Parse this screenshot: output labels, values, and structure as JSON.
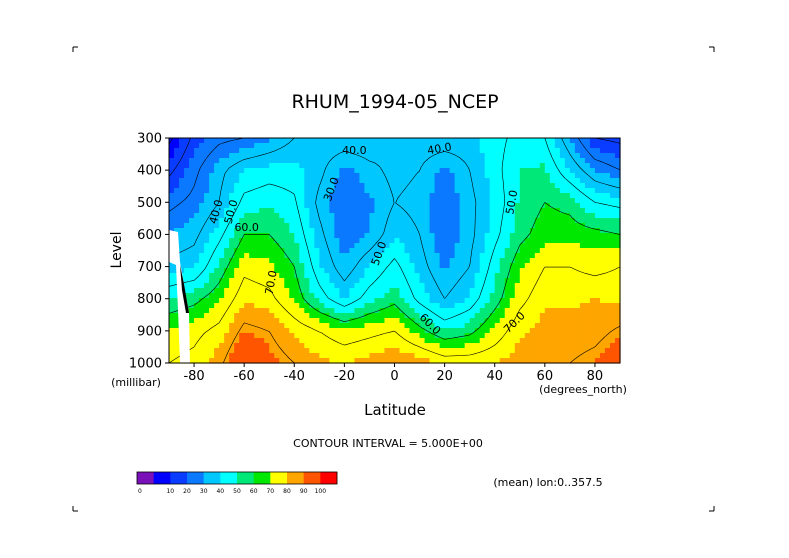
{
  "chart_data": {
    "type": "contour",
    "title": "RHUM_1994-05_NCEP",
    "xlabel": "Latitude",
    "ylabel": "Level",
    "y_units": "(millibar)",
    "x_units": "(degrees_north)",
    "xlim": [
      -90,
      90
    ],
    "ylim": [
      1000,
      300
    ],
    "x_ticks": [
      -80,
      -60,
      -40,
      -20,
      0,
      20,
      40,
      60,
      80
    ],
    "x_tick_labels": [
      "-80",
      "-60",
      "-40",
      "-20",
      "0",
      "20",
      "40",
      "60",
      "80"
    ],
    "y_ticks": [
      300,
      400,
      500,
      600,
      700,
      800,
      900,
      1000
    ],
    "y_tick_labels": [
      "300",
      "400",
      "500",
      "600",
      "700",
      "800",
      "900",
      "1000"
    ],
    "contour_interval_text": "CONTOUR INTERVAL = 5.000E+00",
    "subtitle_right": "(mean) lon:0..357.5",
    "contour_labels": [
      {
        "text": "40.0",
        "lat": -16,
        "lev": 340,
        "angle": 0
      },
      {
        "text": "40.0",
        "lat": 18,
        "lev": 335,
        "angle": -10
      },
      {
        "text": "30.0",
        "lat": -25,
        "lev": 460,
        "angle": -70
      },
      {
        "text": "40.0",
        "lat": -71,
        "lev": 530,
        "angle": -75
      },
      {
        "text": "50.0",
        "lat": -65,
        "lev": 530,
        "angle": -75
      },
      {
        "text": "60.0",
        "lat": -59,
        "lev": 580,
        "angle": 0
      },
      {
        "text": "70.0",
        "lat": -49,
        "lev": 750,
        "angle": -80
      },
      {
        "text": "50.0",
        "lat": -6,
        "lev": 660,
        "angle": -70
      },
      {
        "text": "50.0",
        "lat": 47,
        "lev": 500,
        "angle": -80
      },
      {
        "text": "60.0",
        "lat": 14,
        "lev": 880,
        "angle": 45
      },
      {
        "text": "70.0",
        "lat": 48,
        "lev": 875,
        "angle": -45
      }
    ],
    "data_summary": "Zonal-mean relative humidity (%) by latitude and pressure level; dry bands (~30-40%) near 25S and 20N at 400-600 mb; moist (>80%) near surface in midlatitudes; very dry (<10%) near 80S at 300 mb.",
    "field": {
      "lats": [
        -90,
        -80,
        -70,
        -60,
        -50,
        -40,
        -30,
        -20,
        -10,
        0,
        10,
        20,
        30,
        40,
        50,
        60,
        70,
        80,
        90
      ],
      "levels": [
        300,
        400,
        500,
        600,
        700,
        800,
        900,
        1000
      ],
      "rh": [
        [
          8,
          22,
          28,
          30,
          34,
          40,
          44,
          45,
          45,
          40,
          44,
          45,
          44,
          48,
          52,
          50,
          35,
          20,
          18
        ],
        [
          18,
          28,
          38,
          45,
          47,
          47,
          42,
          33,
          38,
          42,
          40,
          33,
          40,
          48,
          55,
          56,
          45,
          35,
          30
        ],
        [
          28,
          32,
          40,
          52,
          54,
          51,
          38,
          30,
          34,
          40,
          38,
          31,
          38,
          46,
          56,
          60,
          58,
          50,
          48
        ],
        [
          35,
          38,
          48,
          60,
          60,
          55,
          42,
          31,
          35,
          44,
          40,
          30,
          38,
          48,
          58,
          63,
          63,
          62,
          60
        ],
        [
          42,
          44,
          56,
          68,
          66,
          60,
          46,
          36,
          45,
          52,
          43,
          34,
          40,
          53,
          64,
          70,
          70,
          68,
          70
        ],
        [
          55,
          58,
          64,
          74,
          72,
          64,
          53,
          45,
          53,
          58,
          48,
          40,
          46,
          57,
          68,
          74,
          74,
          75,
          74
        ],
        [
          66,
          68,
          72,
          82,
          80,
          74,
          70,
          66,
          68,
          70,
          62,
          55,
          58,
          66,
          74,
          77,
          77,
          78,
          81
        ],
        [
          70,
          72,
          78,
          90,
          84,
          80,
          76,
          75,
          77,
          80,
          78,
          74,
          74,
          75,
          78,
          80,
          80,
          82,
          86
        ]
      ]
    },
    "colorbar": {
      "ticks": [
        "0",
        "10",
        "20",
        "30",
        "40",
        "50",
        "60",
        "70",
        "80",
        "90",
        "100"
      ],
      "colors": [
        "#7a10b8",
        "#0000ff",
        "#0a3cff",
        "#0a78ff",
        "#00c8ff",
        "#00ffff",
        "#00e878",
        "#00e800",
        "#ffff00",
        "#ffa500",
        "#ff5500",
        "#ff0000"
      ]
    }
  }
}
